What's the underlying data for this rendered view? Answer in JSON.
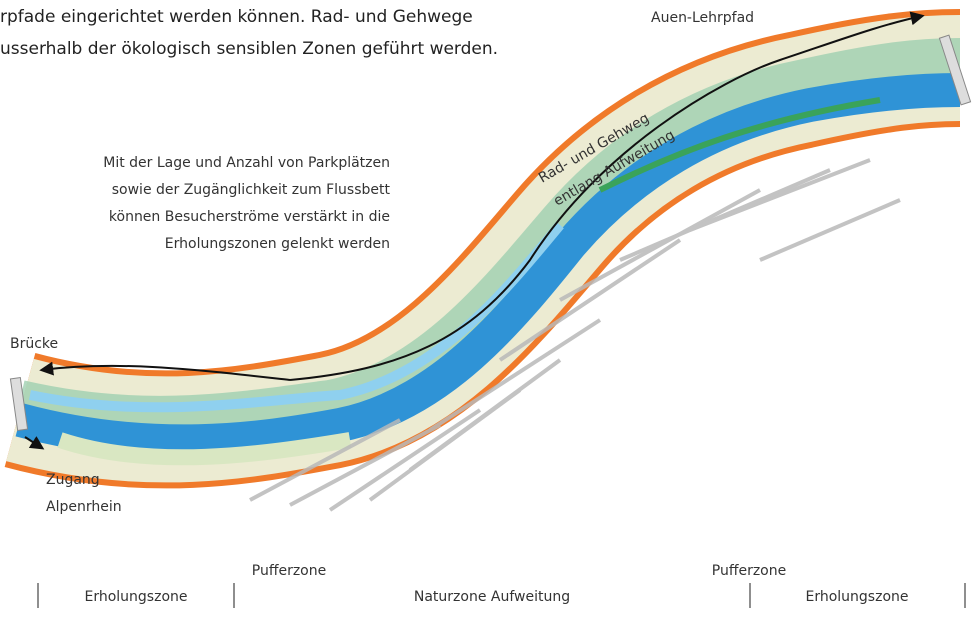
{
  "intro": {
    "lines": [
      "rpfade eingerichtet werden können. Rad- und Gehwege",
      "usserhalb der ökologisch sensiblen Zonen geführt werden."
    ]
  },
  "labels": {
    "lehrpfad": "Auen-Lehrpfad",
    "radweg": [
      "Rad- und Gehweg",
      "entlang Aufweitung"
    ],
    "bruecke": "Brücke",
    "zugang": [
      "Zugang",
      "Alpenrhein"
    ]
  },
  "annotation": [
    "Mit der Lage und Anzahl von Parkplätzen",
    "sowie der Zugänglichkeit zum Flussbett",
    "können Besucherströme verstärkt in die",
    "Erholungszonen gelenkt werden"
  ],
  "zones": {
    "puffer": [
      "Pufferzone",
      "Pufferzone"
    ],
    "bands": [
      "Erholungszone",
      "Naturzone Aufweitung",
      "Erholungszone"
    ]
  }
}
